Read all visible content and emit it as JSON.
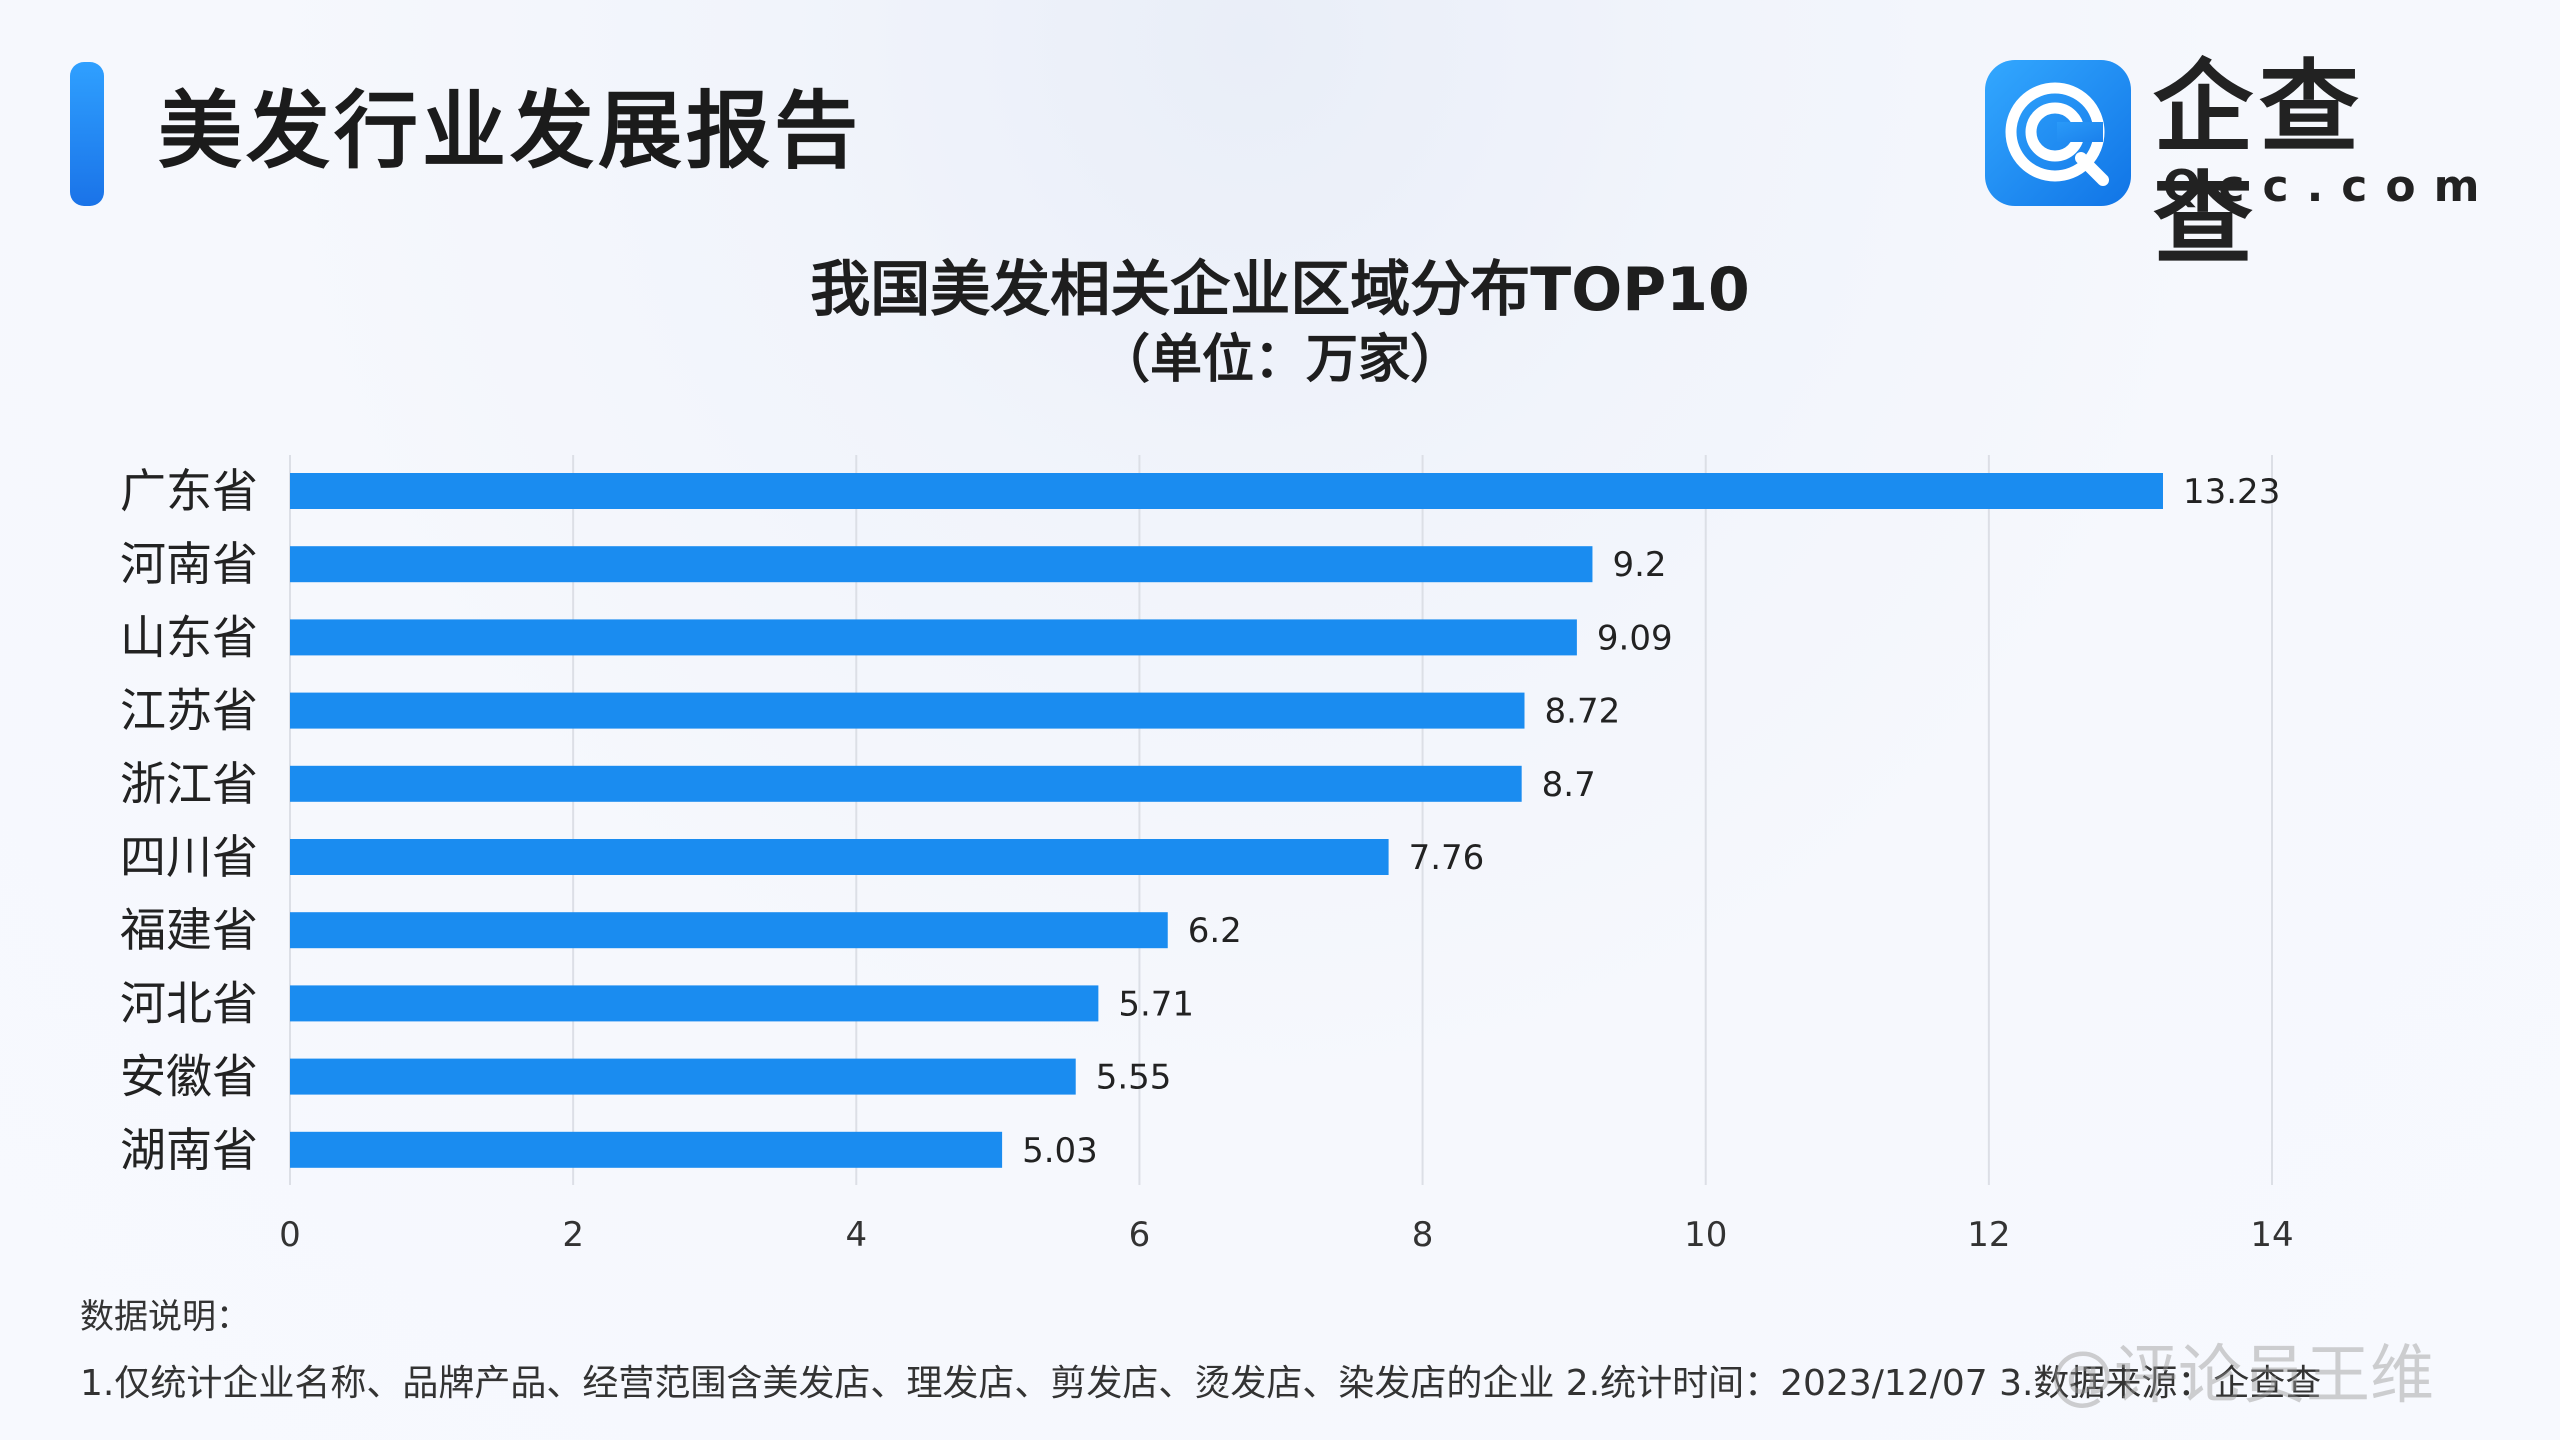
{
  "header": {
    "report_title": "美发行业发展报告",
    "logo_name": "企查查",
    "logo_domain": "Qcc.com"
  },
  "colors": {
    "accent": "#1a8cf0",
    "bar": "#1a8cf0",
    "text": "#1e1e1e"
  },
  "chart_data": {
    "type": "bar",
    "orientation": "horizontal",
    "title": "我国美发相关企业区域分布TOP10",
    "subtitle": "（单位：万家）",
    "categories": [
      "广东省",
      "河南省",
      "山东省",
      "江苏省",
      "浙江省",
      "四川省",
      "福建省",
      "河北省",
      "安徽省",
      "湖南省"
    ],
    "values": [
      13.23,
      9.2,
      9.09,
      8.72,
      8.7,
      7.76,
      6.2,
      5.71,
      5.55,
      5.03
    ],
    "value_labels": [
      "13.23",
      "9.2",
      "9.09",
      "8.72",
      "8.7",
      "7.76",
      "6.2",
      "5.71",
      "5.55",
      "5.03"
    ],
    "xlim": [
      0,
      14
    ],
    "xticks": [
      0,
      2,
      4,
      6,
      8,
      10,
      12,
      14
    ],
    "grid": "vertical",
    "legend": "none"
  },
  "notes": {
    "title": "数据说明：",
    "text": "1.仅统计企业名称、品牌产品、经营范围含美发店、理发店、剪发店、烫发店、染发店的企业    2.统计时间：2023/12/07    3.数据来源：企查查"
  },
  "watermark": "@评论员王维"
}
